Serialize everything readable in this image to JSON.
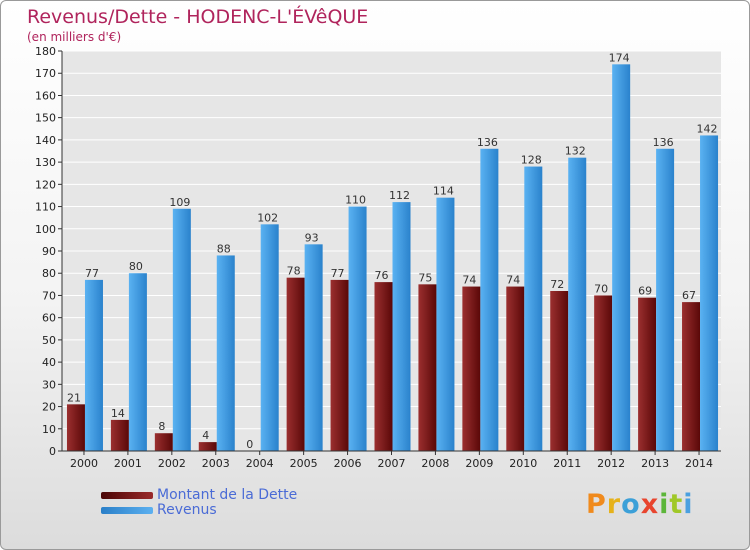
{
  "title": "Revenus/Dette - HODENC-L'ÉVêQUE",
  "subtitle": "(en milliers d'€)",
  "legend": [
    {
      "label": "Montant de la Dette",
      "color": "#7a1515"
    },
    {
      "label": "Revenus",
      "color": "#3b9ae6"
    }
  ],
  "logo": {
    "letters": [
      "P",
      "r",
      "o",
      "x",
      "i",
      "t",
      "i"
    ],
    "colors": [
      "#f08a1c",
      "#e6b21a",
      "#3ca0d8",
      "#e8452e",
      "#5cb63a",
      "#a0c828",
      "#4aa0e0"
    ]
  },
  "colors": {
    "debt": "#7a1515",
    "revenue": "#3b9ae6",
    "grid": "#ffffff",
    "axis": "#333333"
  },
  "chart_data": {
    "type": "bar",
    "title": "Revenus/Dette - HODENC-L'ÉVêQUE",
    "ylabel": "(en milliers d'€)",
    "xlabel": "",
    "ylim": [
      0,
      180
    ],
    "yticks": [
      0,
      10,
      20,
      30,
      40,
      50,
      60,
      70,
      80,
      90,
      100,
      110,
      120,
      130,
      140,
      150,
      160,
      170,
      180
    ],
    "categories": [
      "2000",
      "2001",
      "2002",
      "2003",
      "2004",
      "2005",
      "2006",
      "2007",
      "2008",
      "2009",
      "2010",
      "2011",
      "2012",
      "2013",
      "2014"
    ],
    "series": [
      {
        "name": "Montant de la Dette",
        "values": [
          21,
          14,
          8,
          4,
          0,
          78,
          77,
          76,
          75,
          74,
          74,
          72,
          70,
          69,
          67
        ]
      },
      {
        "name": "Revenus",
        "values": [
          77,
          80,
          109,
          88,
          102,
          93,
          110,
          112,
          114,
          136,
          128,
          132,
          174,
          136,
          142
        ]
      }
    ],
    "legend_position": "bottom-left"
  }
}
